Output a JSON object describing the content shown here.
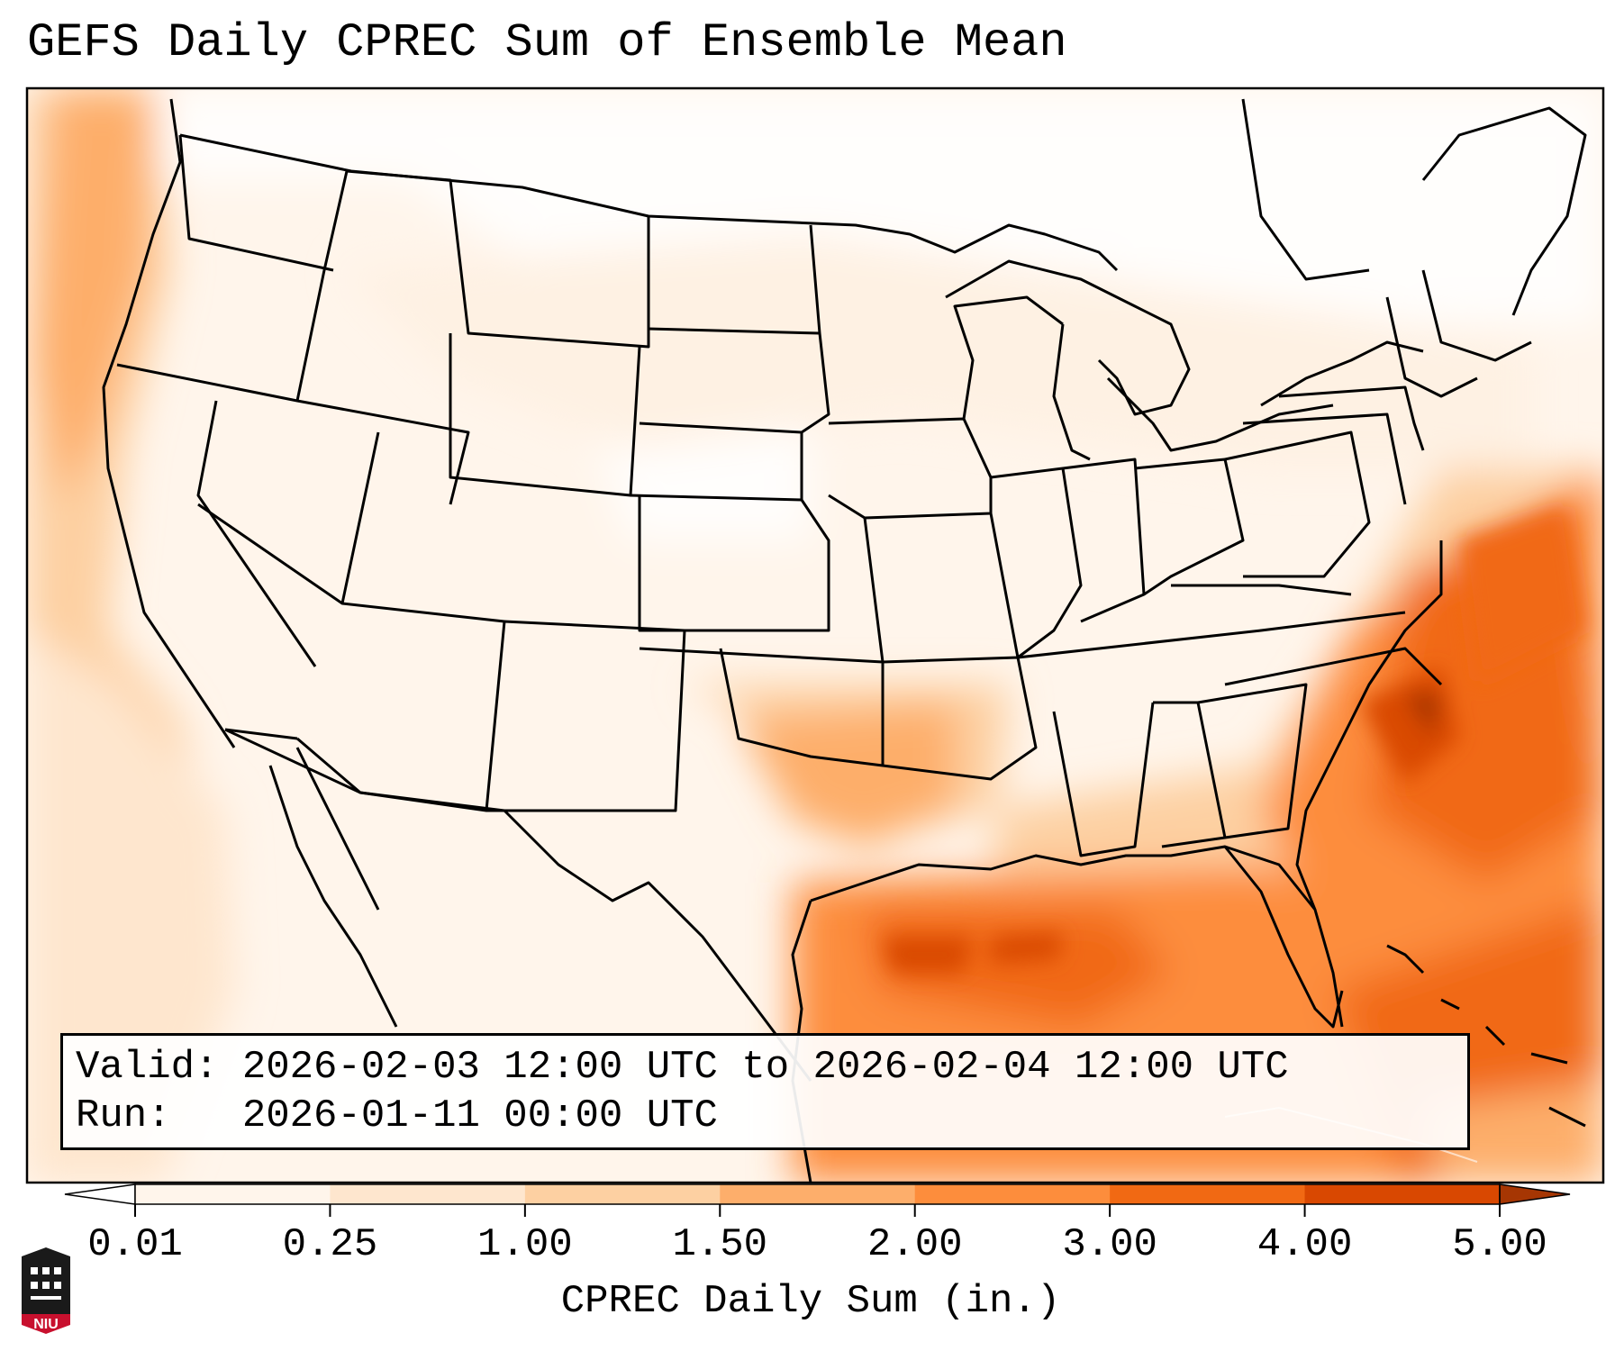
{
  "title": "GEFS Daily CPREC Sum of Ensemble Mean",
  "info": {
    "valid_label": "Valid:",
    "valid_text": "2026-02-03 12:00 UTC to 2026-02-04 12:00 UTC",
    "run_label": "Run:",
    "run_text": "2026-01-11 00:00 UTC"
  },
  "colorbar": {
    "label": "CPREC Daily Sum (in.)",
    "ticks": [
      "0.01",
      "0.25",
      "1.00",
      "1.50",
      "2.00",
      "3.00",
      "4.00",
      "5.00"
    ],
    "colors": [
      "#fff5eb",
      "#fee6ce",
      "#fdd0a2",
      "#fdae6b",
      "#fd8d3c",
      "#f16913",
      "#d94801",
      "#a63603"
    ],
    "extend": "both"
  },
  "logo": {
    "text": "NIU",
    "colors": {
      "red": "#c8102e",
      "black": "#1a1a1a"
    }
  }
}
